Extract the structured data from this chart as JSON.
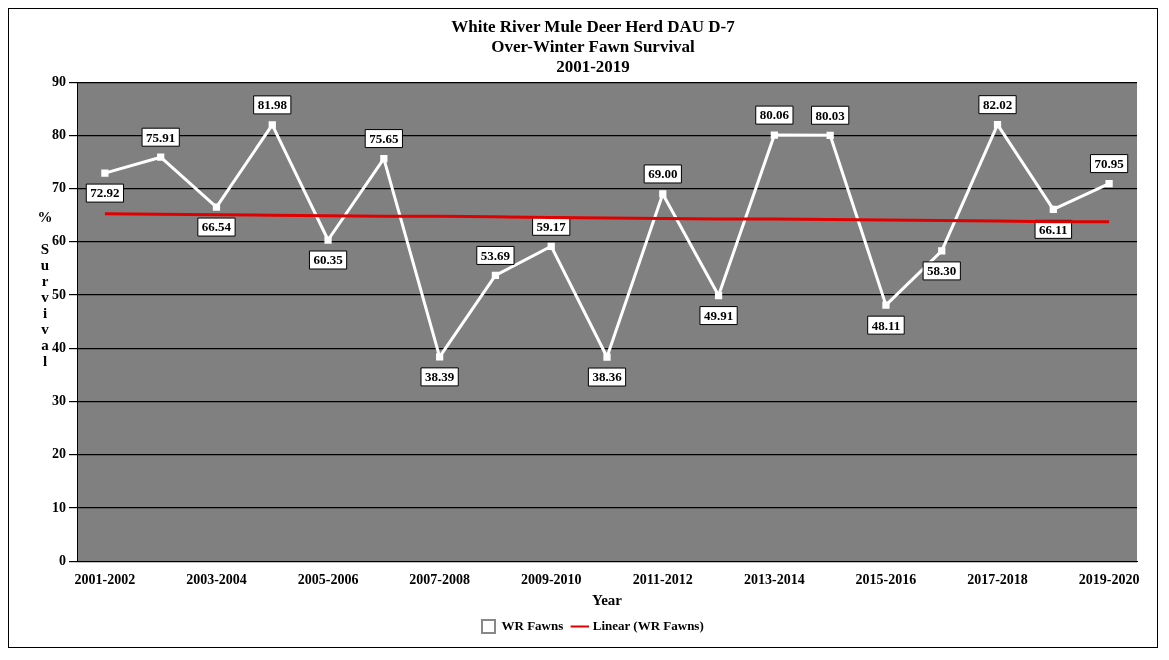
{
  "chart_data": {
    "type": "line",
    "title": "White River Mule Deer Herd DAU D-7\nOver-Winter Fawn Survival\n2001-2019",
    "xlabel": "Year",
    "ylabel": "% Survival",
    "categories": [
      "2001-2002",
      null,
      "2003-2004",
      null,
      "2005-2006",
      null,
      "2007-2008",
      null,
      "2009-2010",
      null,
      "2011-2012",
      null,
      "2013-2014",
      null,
      "2015-2016",
      null,
      "2017-2018",
      null,
      "2019-2020"
    ],
    "series": [
      {
        "name": "WR Fawns",
        "color": "#ffffff",
        "marker": "square",
        "values": [
          72.92,
          75.91,
          66.54,
          81.98,
          60.35,
          75.65,
          38.39,
          53.69,
          59.17,
          38.36,
          69.0,
          49.91,
          80.06,
          80.03,
          48.11,
          58.3,
          82.02,
          66.11,
          70.95
        ]
      },
      {
        "name": "Linear (WR Fawns)",
        "color": "#e00000",
        "marker": "none",
        "values": [
          65.3,
          65.2,
          65.1,
          65.0,
          64.9,
          64.8,
          64.8,
          64.7,
          64.6,
          64.5,
          64.4,
          64.3,
          64.3,
          64.2,
          64.1,
          64.0,
          63.9,
          63.8,
          63.8
        ]
      }
    ],
    "value_labels": [
      "72.92",
      "75.91",
      "66.54",
      "81.98",
      "60.35",
      "75.65",
      "38.39",
      "53.69",
      "59.17",
      "38.36",
      "69.00",
      "49.91",
      "80.06",
      "80.03",
      "48.11",
      "58.30",
      "82.02",
      "66.11",
      "70.95"
    ],
    "ylim": [
      0,
      90
    ],
    "yticks": [
      0,
      10,
      20,
      30,
      40,
      50,
      60,
      70,
      80,
      90
    ],
    "grid": "y",
    "legend": "bottom"
  }
}
